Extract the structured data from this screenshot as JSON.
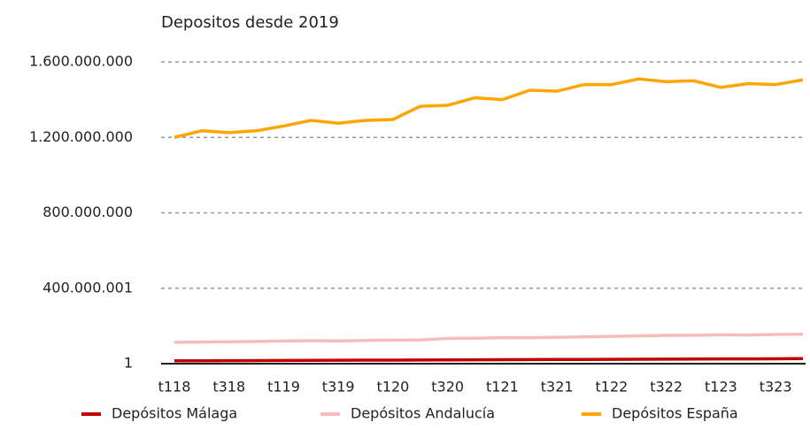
{
  "chart_data": {
    "type": "line",
    "title": "Depositos desde 2019",
    "categories": [
      "t118",
      null,
      "t318",
      null,
      "t119",
      null,
      "t319",
      null,
      "t120",
      null,
      "t320",
      null,
      "t121",
      null,
      "t321",
      null,
      "t122",
      null,
      "t322",
      null,
      "t123",
      null,
      "t323",
      null
    ],
    "series": [
      {
        "name": "Depósitos Málaga",
        "color": "#c00000",
        "values": [
          15000000,
          15500000,
          16000000,
          16500000,
          17000000,
          17500000,
          18000000,
          18500000,
          19000000,
          19500000,
          20000000,
          20500000,
          21000000,
          21500000,
          22000000,
          22500000,
          23000000,
          23500000,
          24000000,
          24500000,
          25000000,
          25500000,
          26000000,
          27000000
        ]
      },
      {
        "name": "Depósitos Andalucía",
        "color": "#f8bcbc",
        "values": [
          113000000,
          115000000,
          116000000,
          118000000,
          120000000,
          122000000,
          121000000,
          123000000,
          125000000,
          126000000,
          134000000,
          135000000,
          138000000,
          137000000,
          140000000,
          142000000,
          145000000,
          147000000,
          150000000,
          151000000,
          153000000,
          152000000,
          155000000,
          156000000
        ]
      },
      {
        "name": "Depósitos España",
        "color": "#ffa500",
        "values": [
          1200000000,
          1235000000,
          1225000000,
          1235000000,
          1260000000,
          1290000000,
          1275000000,
          1290000000,
          1295000000,
          1365000000,
          1370000000,
          1410000000,
          1400000000,
          1450000000,
          1445000000,
          1480000000,
          1480000000,
          1510000000,
          1495000000,
          1500000000,
          1465000000,
          1485000000,
          1480000000,
          1505000000
        ]
      }
    ],
    "ylim": [
      1,
      1600000000
    ],
    "yticks": [
      1,
      {
        "value": 400000001,
        "label": "400.000.001"
      },
      {
        "value": 800000000,
        "label": "800.000.000"
      },
      {
        "value": 1200000000,
        "label": "1.200.000.000"
      },
      {
        "value": 1600000000,
        "label": "1.600.000.000"
      }
    ],
    "grid": true,
    "legend": "bottom"
  }
}
